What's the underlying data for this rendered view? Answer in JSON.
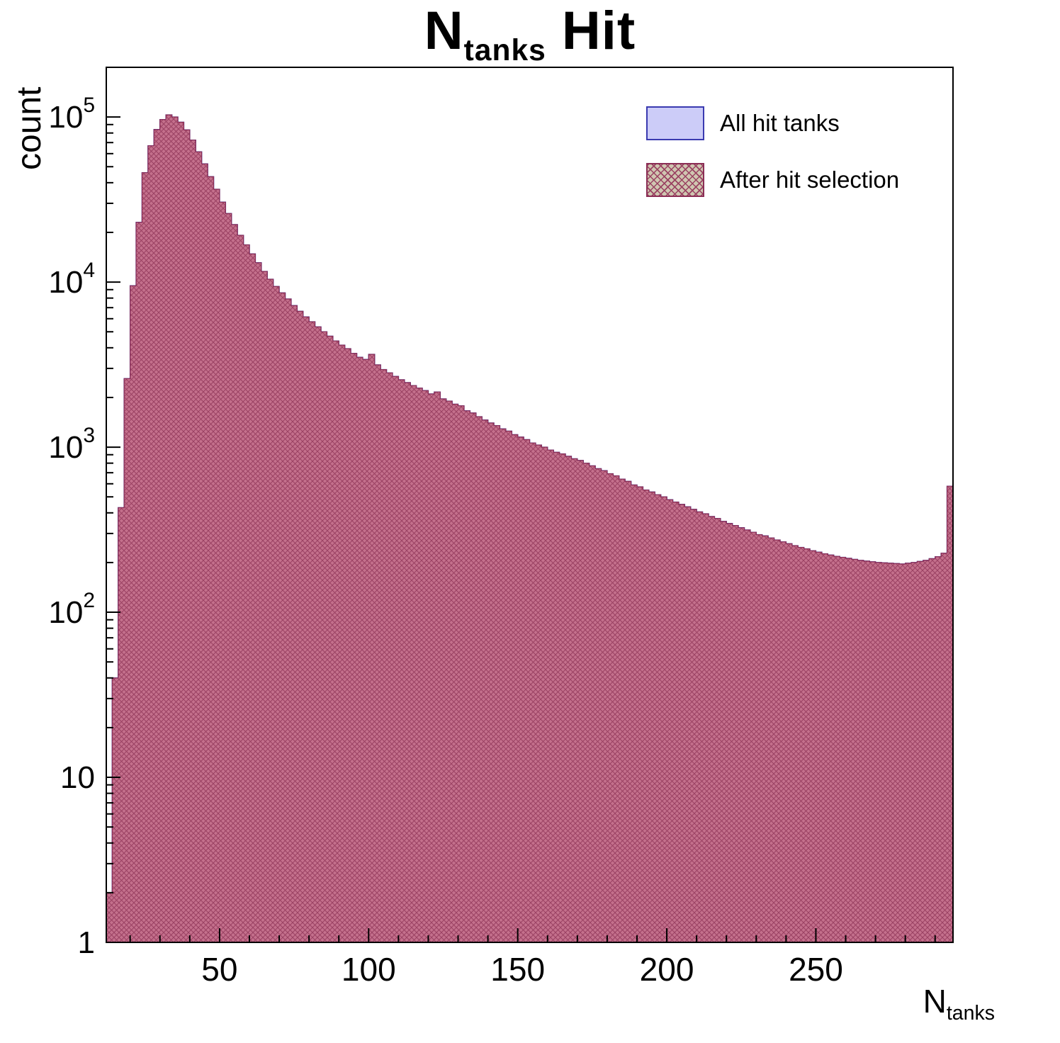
{
  "title": {
    "prefix": "N",
    "sub": "tanks",
    "suffix": " Hit"
  },
  "axes": {
    "y_label": "count",
    "x_label_prefix": "N",
    "x_label_sub": "tanks"
  },
  "legend": [
    {
      "label": "All hit tanks",
      "swatch": "solid"
    },
    {
      "label": "After hit selection",
      "swatch": "hatched"
    }
  ],
  "colors": {
    "all_fill": "#ccccf8",
    "all_edge": "#3a3ab0",
    "after_edge": "#8b2e55",
    "hatch_bg": "#c4708c",
    "hatch_line": "#9a4162",
    "legend_hatch_bg": "#cfc6b0",
    "frame": "#000000"
  },
  "chart_data": {
    "type": "bar",
    "title": "N_tanks Hit",
    "xlabel": "N_tanks",
    "ylabel": "count",
    "y_scale": "log",
    "xlim": [
      12,
      296
    ],
    "ylim": [
      1,
      200000
    ],
    "y_top": 200000,
    "x_ticks": [
      50,
      100,
      150,
      200,
      250
    ],
    "x_minor_step": 10,
    "y_ticks_exponents": [
      0,
      1,
      2,
      3,
      4,
      5
    ],
    "x_start": 12,
    "bin_width": 2,
    "series": [
      {
        "name": "All hit tanks",
        "values": [
          2,
          40,
          430,
          2600,
          9500,
          23000,
          46000,
          67000,
          84000,
          96500,
          103000,
          100000,
          93000,
          83500,
          72500,
          61500,
          52000,
          43500,
          36500,
          30500,
          26000,
          22300,
          19200,
          16800,
          14800,
          13100,
          11600,
          10400,
          9400,
          8600,
          7900,
          7200,
          6650,
          6150,
          5750,
          5350,
          5000,
          4700,
          4400,
          4150,
          3950,
          3700,
          3500,
          3400,
          3650,
          3150,
          2950,
          2820,
          2680,
          2560,
          2460,
          2360,
          2280,
          2200,
          2100,
          2160,
          1960,
          1900,
          1820,
          1780,
          1660,
          1610,
          1530,
          1460,
          1400,
          1350,
          1290,
          1250,
          1190,
          1150,
          1110,
          1060,
          1030,
          1000,
          960,
          930,
          910,
          880,
          850,
          830,
          800,
          770,
          740,
          720,
          690,
          670,
          640,
          620,
          590,
          575,
          550,
          535,
          515,
          500,
          480,
          465,
          450,
          435,
          420,
          405,
          395,
          380,
          370,
          355,
          345,
          335,
          325,
          315,
          305,
          295,
          290,
          282,
          274,
          267,
          260,
          253,
          247,
          242,
          236,
          231,
          226,
          222,
          218,
          215,
          212,
          209,
          206,
          204,
          202,
          200,
          199,
          198,
          197,
          196,
          198,
          200,
          203,
          206,
          211,
          217,
          228,
          580
        ]
      },
      {
        "name": "After hit selection",
        "values": [
          2,
          40,
          430,
          2600,
          9500,
          23000,
          46000,
          67000,
          84000,
          96500,
          103000,
          100000,
          93000,
          83500,
          72500,
          61500,
          52000,
          43500,
          36500,
          30500,
          26000,
          22300,
          19200,
          16800,
          14800,
          13100,
          11600,
          10400,
          9400,
          8600,
          7900,
          7200,
          6650,
          6150,
          5750,
          5350,
          5000,
          4700,
          4400,
          4150,
          3950,
          3700,
          3500,
          3400,
          3650,
          3150,
          2950,
          2820,
          2680,
          2560,
          2460,
          2360,
          2280,
          2200,
          2100,
          2160,
          1960,
          1900,
          1820,
          1780,
          1660,
          1610,
          1530,
          1460,
          1400,
          1350,
          1290,
          1250,
          1190,
          1150,
          1110,
          1060,
          1030,
          1000,
          960,
          930,
          910,
          880,
          850,
          830,
          800,
          770,
          740,
          720,
          690,
          670,
          640,
          620,
          590,
          575,
          550,
          535,
          515,
          500,
          480,
          465,
          450,
          435,
          420,
          405,
          395,
          380,
          370,
          355,
          345,
          335,
          325,
          315,
          305,
          295,
          290,
          282,
          274,
          267,
          260,
          253,
          247,
          242,
          236,
          231,
          226,
          222,
          218,
          215,
          212,
          209,
          206,
          204,
          202,
          200,
          199,
          198,
          197,
          196,
          198,
          200,
          203,
          206,
          211,
          217,
          228,
          580
        ]
      }
    ]
  }
}
